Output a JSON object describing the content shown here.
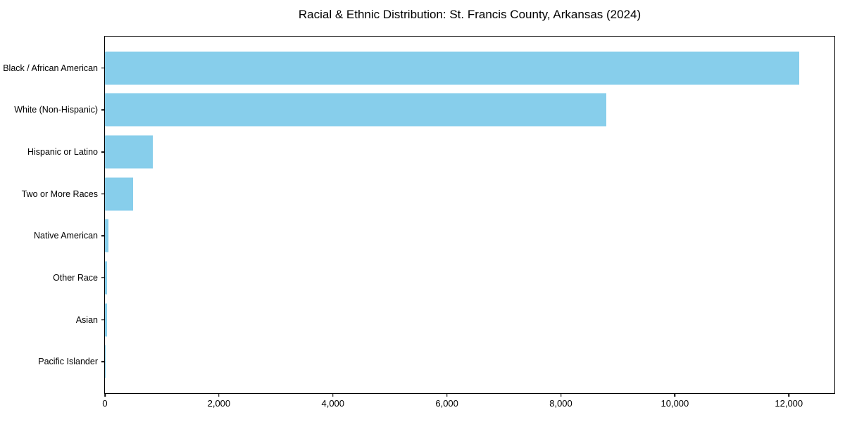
{
  "title": "Racial & Ethnic Distribution: St. Francis County, Arkansas (2024)",
  "colors": {
    "bar_fill": "#87CEEB",
    "axis": "#000000",
    "text": "#000000",
    "background": "#ffffff"
  },
  "chart_data": {
    "type": "bar",
    "orientation": "horizontal",
    "title": "Racial & Ethnic Distribution: St. Francis County, Arkansas (2024)",
    "xlabel": "",
    "ylabel": "",
    "categories": [
      "Black / African American",
      "White (Non-Hispanic)",
      "Hispanic or Latino",
      "Two or More Races",
      "Native American",
      "Other Race",
      "Asian",
      "Pacific Islander"
    ],
    "values": [
      12180,
      8800,
      840,
      490,
      65,
      40,
      40,
      5
    ],
    "xlim": [
      0,
      12800
    ],
    "xticks": [
      0,
      2000,
      4000,
      6000,
      8000,
      10000,
      12000
    ],
    "xtick_labels": [
      "0",
      "2,000",
      "4,000",
      "6,000",
      "8,000",
      "10,000",
      "12,000"
    ],
    "bar_color": "#87CEEB",
    "grid": false,
    "legend": null
  }
}
